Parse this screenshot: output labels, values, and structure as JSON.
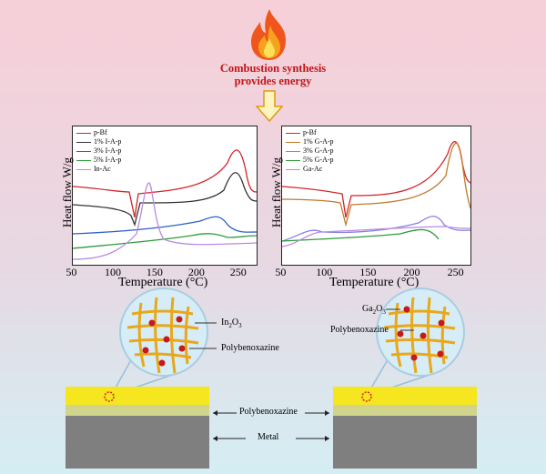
{
  "top": {
    "callout_line1": "Combustion synthesis",
    "callout_line2": "provides energy",
    "icon": "flame-icon"
  },
  "chart_data": [
    {
      "type": "line",
      "xlabel": "Temperature (°C)",
      "ylabel": "Heat flow  W/g",
      "xlim": [
        50,
        270
      ],
      "x_ticks": [
        "50",
        "100",
        "150",
        "200",
        "250"
      ],
      "legend": "top-left",
      "series": [
        {
          "name": "p-Bf",
          "color": "#d22428"
        },
        {
          "name": "1% I-A-p",
          "color": "#333333"
        },
        {
          "name": "3% I-A-p",
          "color": "#2d5fc9"
        },
        {
          "name": "5% I-A-p",
          "color": "#2e9b3b"
        },
        {
          "name": "In-Ac",
          "color": "#b88be0"
        }
      ]
    },
    {
      "type": "line",
      "xlabel": "Temperature (°C)",
      "ylabel": "Heat flow  W/g",
      "xlim": [
        50,
        265
      ],
      "x_ticks": [
        "50",
        "100",
        "150",
        "200",
        "250"
      ],
      "legend": "top-left",
      "series": [
        {
          "name": "p-Bf",
          "color": "#d22428"
        },
        {
          "name": "1% G-A-p",
          "color": "#c07a2a"
        },
        {
          "name": "3% G-A-p",
          "color": "#8b7ee0"
        },
        {
          "name": "5% G-A-p",
          "color": "#2e9b3b"
        },
        {
          "name": "Ga-Ac",
          "color": "#b88be0"
        }
      ]
    }
  ],
  "schematic": {
    "left_oxide_base": "In",
    "left_oxide_sub1": "2",
    "left_oxide_mid": "O",
    "left_oxide_sub2": "3",
    "left_polymer": "Polybenoxazine",
    "right_oxide_base": "Ga",
    "right_oxide_sub1": "2",
    "right_oxide_mid": "O",
    "right_oxide_sub2": "3",
    "right_polymer": "Polybenoxazine",
    "coating_label": "Polybenoxazine",
    "metal_label": "Metal",
    "colors": {
      "coating": "#f5e620",
      "metal": "#7f7f7f",
      "mesh": "#e8a81a",
      "particle": "#c41a1a"
    }
  }
}
